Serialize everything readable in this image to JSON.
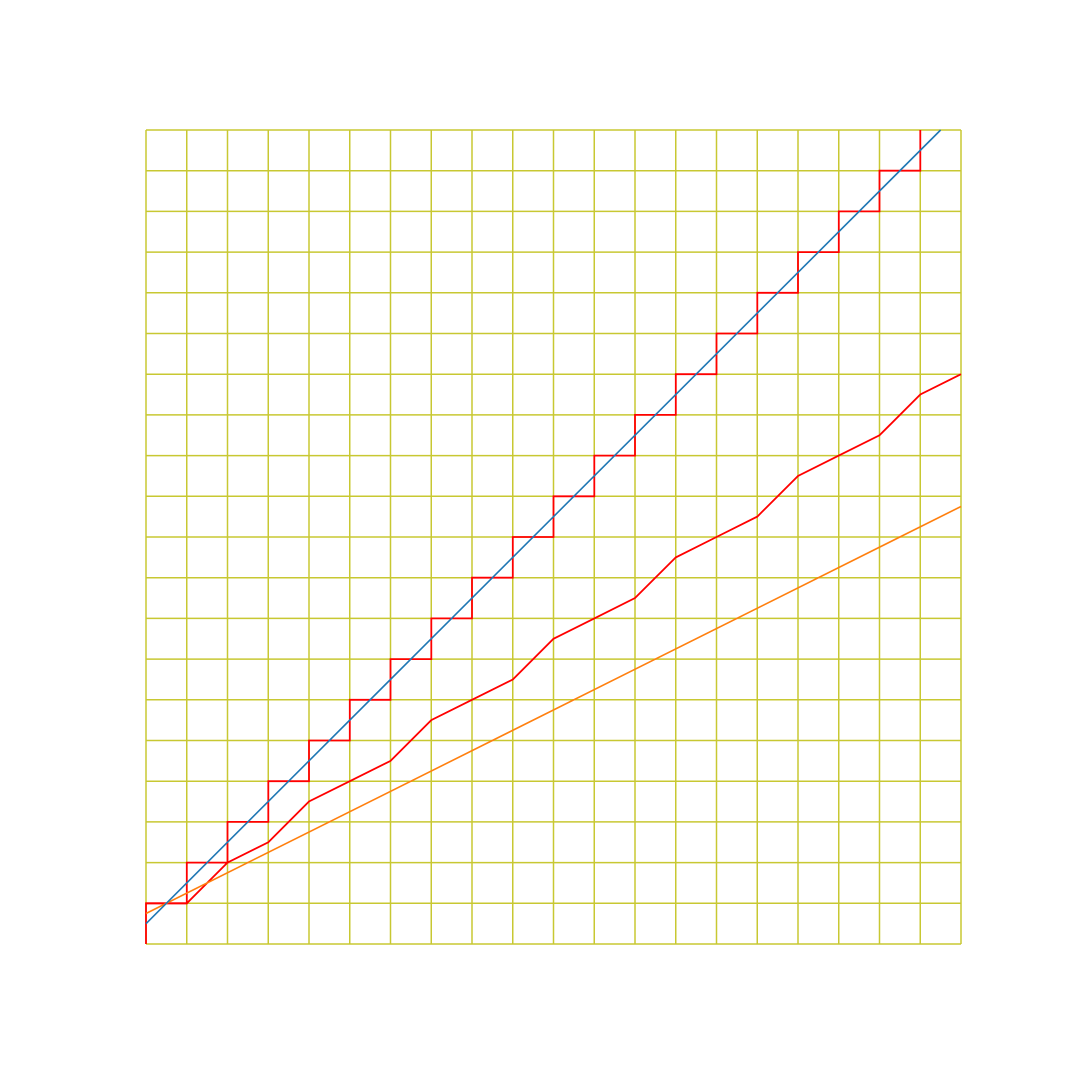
{
  "figure": {
    "background_color": "#ffffff",
    "grid": {
      "columns": 20,
      "rows": 20,
      "color": "#c8c832"
    },
    "x_range": [
      0,
      20
    ],
    "y_range": [
      0,
      20
    ]
  },
  "lines": {
    "steep_line": {
      "color": "#1f77b4",
      "slope": 1,
      "from": [
        0,
        0.5
      ],
      "to": [
        19.5,
        20
      ]
    },
    "shallow_line": {
      "color": "#ff7f0e",
      "slope": 0.5,
      "from": [
        0,
        0.75
      ],
      "to": [
        20,
        10.75
      ]
    }
  },
  "pixel_paths": {
    "color": "#ff0000",
    "staircase": [
      [
        0,
        0
      ],
      [
        0,
        1
      ],
      [
        1,
        1
      ],
      [
        1,
        2
      ],
      [
        2,
        2
      ],
      [
        2,
        3
      ],
      [
        3,
        3
      ],
      [
        3,
        4
      ],
      [
        4,
        4
      ],
      [
        4,
        5
      ],
      [
        5,
        5
      ],
      [
        5,
        6
      ],
      [
        6,
        6
      ],
      [
        6,
        7
      ],
      [
        7,
        7
      ],
      [
        7,
        8
      ],
      [
        8,
        8
      ],
      [
        8,
        9
      ],
      [
        9,
        9
      ],
      [
        9,
        10
      ],
      [
        10,
        10
      ],
      [
        10,
        11
      ],
      [
        11,
        11
      ],
      [
        11,
        12
      ],
      [
        12,
        12
      ],
      [
        12,
        13
      ],
      [
        13,
        13
      ],
      [
        13,
        14
      ],
      [
        14,
        14
      ],
      [
        14,
        15
      ],
      [
        15,
        15
      ],
      [
        15,
        16
      ],
      [
        16,
        16
      ],
      [
        16,
        17
      ],
      [
        17,
        17
      ],
      [
        17,
        18
      ],
      [
        18,
        18
      ],
      [
        18,
        19
      ],
      [
        19,
        19
      ],
      [
        19,
        20
      ]
    ],
    "zigzag": [
      [
        0,
        1
      ],
      [
        1,
        1
      ],
      [
        2,
        2
      ],
      [
        3,
        2.5
      ],
      [
        4,
        3.5
      ],
      [
        5,
        4
      ],
      [
        6,
        4.5
      ],
      [
        7,
        5.5
      ],
      [
        8,
        6
      ],
      [
        9,
        6.5
      ],
      [
        10,
        7.5
      ],
      [
        11,
        8
      ],
      [
        12,
        8.5
      ],
      [
        13,
        9.5
      ],
      [
        14,
        10
      ],
      [
        15,
        10.5
      ],
      [
        16,
        11.5
      ],
      [
        17,
        12
      ],
      [
        18,
        12.5
      ],
      [
        19,
        13.5
      ],
      [
        20,
        14
      ]
    ]
  }
}
